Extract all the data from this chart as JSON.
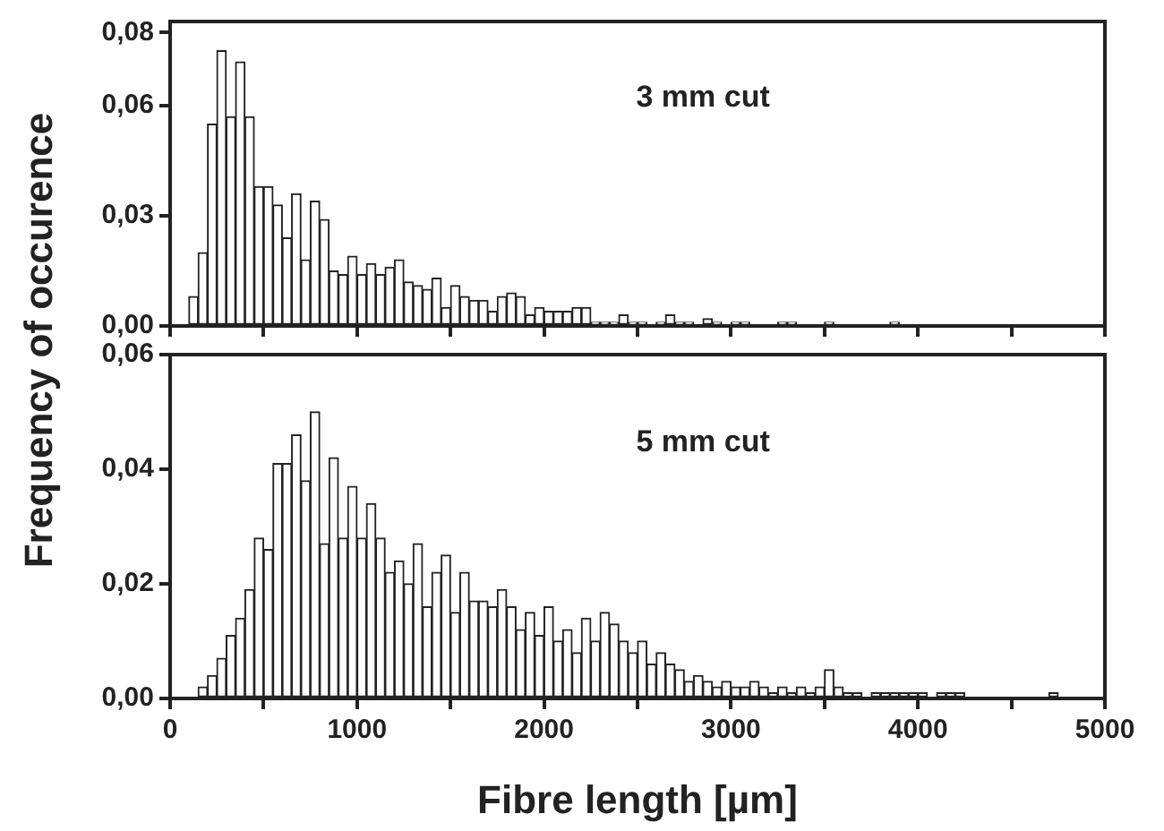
{
  "chart_data": [
    {
      "type": "histogram",
      "ylabel": "Frequency of occurence",
      "annotations": [
        "3 mm cut"
      ],
      "color": "#ffffff",
      "tick_labels": "y",
      "bins": [
        0,
        50,
        100,
        150,
        200,
        250,
        300,
        350,
        400,
        450,
        500,
        550,
        600,
        650,
        700,
        750,
        800,
        850,
        900,
        950,
        1000,
        1050,
        1100,
        1150,
        1200,
        1250,
        1300,
        1350,
        1400,
        1450,
        1500,
        1550,
        1600,
        1650,
        1700,
        1750,
        1800,
        1850,
        1900,
        1950,
        2000,
        2050,
        2100,
        2150,
        2200,
        2250,
        2300,
        2350,
        2400,
        2450,
        2500,
        2550,
        2600,
        2650,
        2700,
        2750,
        2800,
        2850,
        2900,
        2950,
        3000,
        3050,
        3100,
        3150,
        3200,
        3250,
        3300,
        3350,
        3400,
        3450,
        3500,
        3550,
        3600,
        3650,
        3700,
        3750,
        3800,
        3850,
        3900,
        3950,
        4000,
        4050,
        4100,
        4150,
        4200,
        4250,
        4300,
        4350,
        4400,
        4450,
        4500,
        4550,
        4600,
        4650,
        4700,
        4750,
        4800,
        4850,
        4900,
        4950,
        5000
      ],
      "values": [
        0,
        0,
        0.008,
        0.02,
        0.055,
        0.075,
        0.057,
        0.072,
        0.057,
        0.038,
        0.038,
        0.033,
        0.024,
        0.036,
        0.018,
        0.034,
        0.029,
        0.015,
        0.014,
        0.019,
        0.014,
        0.017,
        0.014,
        0.016,
        0.018,
        0.012,
        0.011,
        0.01,
        0.013,
        0.005,
        0.011,
        0.008,
        0.007,
        0.007,
        0.004,
        0.008,
        0.009,
        0.008,
        0.003,
        0.005,
        0.004,
        0.004,
        0.004,
        0.005,
        0.005,
        0.001,
        0.001,
        0.001,
        0.003,
        0.001,
        0.001,
        0,
        0.001,
        0.003,
        0.001,
        0.001,
        0,
        0.002,
        0.001,
        0,
        0.001,
        0.001,
        0,
        0,
        0,
        0.001,
        0.001,
        0,
        0,
        0,
        0.001,
        0,
        0,
        0,
        0,
        0,
        0,
        0.001,
        0,
        0,
        0,
        0,
        0,
        0,
        0,
        0,
        0,
        0,
        0,
        0,
        0,
        0,
        0,
        0,
        0,
        0,
        0,
        0,
        0,
        0
      ],
      "xlim": [
        0,
        5000
      ],
      "xticks": [
        0,
        {
          "value": 500,
          "label": null
        },
        1000,
        {
          "value": 1500,
          "label": null
        },
        2000,
        {
          "value": 2500,
          "label": null
        },
        3000,
        {
          "value": 3500,
          "label": null
        },
        4000,
        {
          "value": 4500,
          "label": null
        },
        5000
      ],
      "ylim": [
        0,
        0.083
      ],
      "yticks": [
        {
          "value": 0,
          "label": "0,00"
        },
        {
          "value": 0.03,
          "label": "0,03"
        },
        {
          "value": 0.06,
          "label": "0,06"
        },
        {
          "value": 0.08,
          "label": "0,08"
        }
      ]
    },
    {
      "type": "histogram",
      "xlabel": "Fibre length [µm]",
      "annotations": [
        "5 mm cut"
      ],
      "color": "#ffffff",
      "bins": [
        0,
        50,
        100,
        150,
        200,
        250,
        300,
        350,
        400,
        450,
        500,
        550,
        600,
        650,
        700,
        750,
        800,
        850,
        900,
        950,
        1000,
        1050,
        1100,
        1150,
        1200,
        1250,
        1300,
        1350,
        1400,
        1450,
        1500,
        1550,
        1600,
        1650,
        1700,
        1750,
        1800,
        1850,
        1900,
        1950,
        2000,
        2050,
        2100,
        2150,
        2200,
        2250,
        2300,
        2350,
        2400,
        2450,
        2500,
        2550,
        2600,
        2650,
        2700,
        2750,
        2800,
        2850,
        2900,
        2950,
        3000,
        3050,
        3100,
        3150,
        3200,
        3250,
        3300,
        3350,
        3400,
        3450,
        3500,
        3550,
        3600,
        3650,
        3700,
        3750,
        3800,
        3850,
        3900,
        3950,
        4000,
        4050,
        4100,
        4150,
        4200,
        4250,
        4300,
        4350,
        4400,
        4450,
        4500,
        4550,
        4600,
        4650,
        4700,
        4750,
        4800,
        4850,
        4900,
        4950,
        5000
      ],
      "values": [
        0,
        0,
        0,
        0.002,
        0.004,
        0.007,
        0.011,
        0.014,
        0.019,
        0.028,
        0.026,
        0.041,
        0.041,
        0.046,
        0.038,
        0.05,
        0.027,
        0.042,
        0.028,
        0.037,
        0.028,
        0.034,
        0.028,
        0.022,
        0.024,
        0.02,
        0.027,
        0.016,
        0.022,
        0.025,
        0.015,
        0.022,
        0.017,
        0.017,
        0.016,
        0.019,
        0.016,
        0.012,
        0.015,
        0.011,
        0.016,
        0.01,
        0.012,
        0.008,
        0.014,
        0.01,
        0.015,
        0.013,
        0.01,
        0.008,
        0.01,
        0.006,
        0.008,
        0.006,
        0.005,
        0.003,
        0.004,
        0.003,
        0.002,
        0.003,
        0.002,
        0.002,
        0.003,
        0.002,
        0.001,
        0.002,
        0.001,
        0.002,
        0.001,
        0.002,
        0.005,
        0.002,
        0.001,
        0.001,
        0,
        0.001,
        0.001,
        0.001,
        0.001,
        0.001,
        0.001,
        0,
        0.001,
        0.001,
        0.001,
        0,
        0,
        0,
        0,
        0,
        0,
        0,
        0,
        0,
        0.001,
        0,
        0,
        0,
        0,
        0
      ],
      "xlim": [
        0,
        5000
      ],
      "xticks": [
        0,
        {
          "value": 500,
          "label": null
        },
        1000,
        {
          "value": 1500,
          "label": null
        },
        2000,
        {
          "value": 2500,
          "label": null
        },
        3000,
        {
          "value": 3500,
          "label": null
        },
        4000,
        {
          "value": 4500,
          "label": null
        },
        5000
      ],
      "ylim": [
        0,
        0.06
      ],
      "yticks": [
        {
          "value": 0,
          "label": "0,00"
        },
        {
          "value": 0.02,
          "label": "0,02"
        },
        {
          "value": 0.04,
          "label": "0,04"
        },
        {
          "value": 0.06,
          "label": "0,06"
        }
      ]
    }
  ]
}
